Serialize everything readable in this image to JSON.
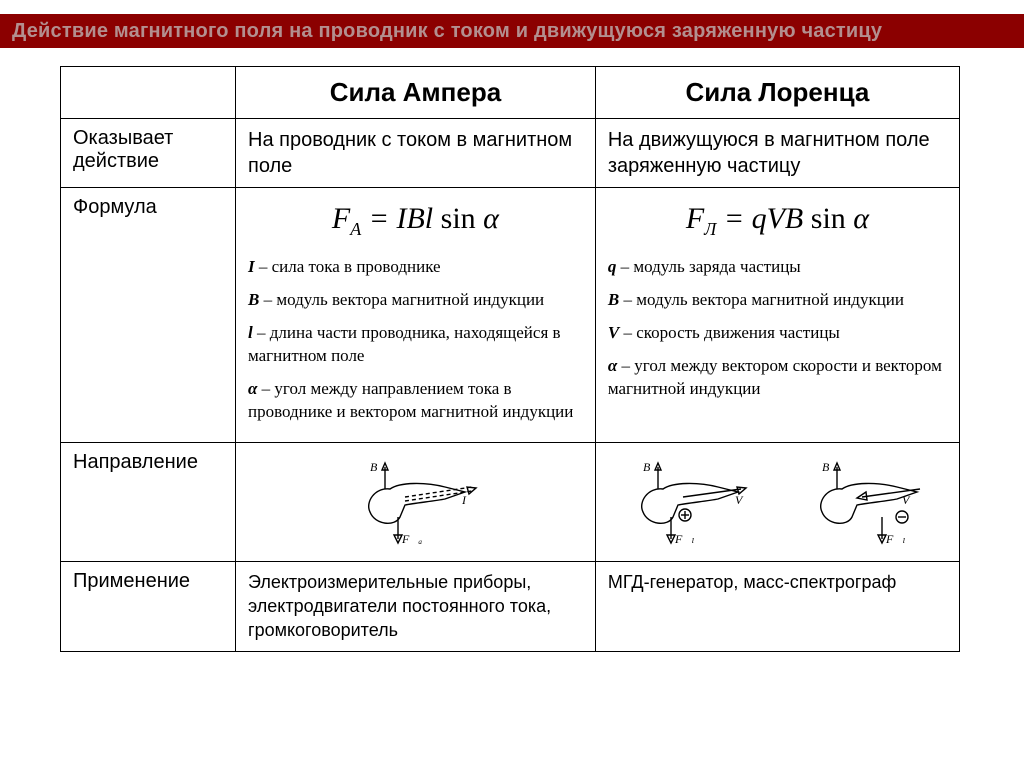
{
  "colors": {
    "band": "#8b0000",
    "title_text": "#b38f8f",
    "border": "#000000",
    "background": "#ffffff"
  },
  "title": "Действие магнитного поля на проводник с током и движущуюся заряженную частицу",
  "columns": {
    "ampere": "Сила Ампера",
    "lorentz": "Сила Лоренца"
  },
  "rows": {
    "effect": {
      "label": "Оказывает действие",
      "ampere": "На проводник с током в магнитном поле",
      "lorentz": "На движущуюся в магнитном поле заряженную частицу"
    },
    "formula": {
      "label": "Формула",
      "ampere": {
        "expr_html": "F<span class='sub'>A</span> = IBl <span class='fn'>sin</span> α",
        "defs": [
          {
            "sym": "I",
            "text": " – сила тока в проводнике"
          },
          {
            "sym": "B",
            "text": " – модуль вектора магнитной индукции"
          },
          {
            "sym": "l",
            "text": " – длина части проводника, находящейся в магнитном поле"
          },
          {
            "sym": "α",
            "text": " – угол между направлением тока в  проводнике и вектором магнитной индукции"
          }
        ]
      },
      "lorentz": {
        "expr_html": "F<span class='sub'>Л</span> = qVB <span class='fn'>sin</span> α",
        "defs": [
          {
            "sym": "q",
            "text": " – модуль заряда частицы"
          },
          {
            "sym": "B",
            "text": " – модуль вектора магнитной индукции"
          },
          {
            "sym": "V",
            "text": " – скорость движения частицы"
          },
          {
            "sym": "α",
            "text": " – угол между вектором скорости и вектором магнитной индукции"
          }
        ]
      }
    },
    "direction": {
      "label": "Направление",
      "ampere_icon": "hand-rule-ampere",
      "lorentz_icons": [
        "hand-rule-lorentz-plus",
        "hand-rule-lorentz-minus"
      ]
    },
    "application": {
      "label": "Применение",
      "ampere": "Электроизмерительные приборы, электродвигатели постоянного тока, громкоговоритель",
      "lorentz": "МГД-генератор, масс-спектрограф"
    }
  }
}
